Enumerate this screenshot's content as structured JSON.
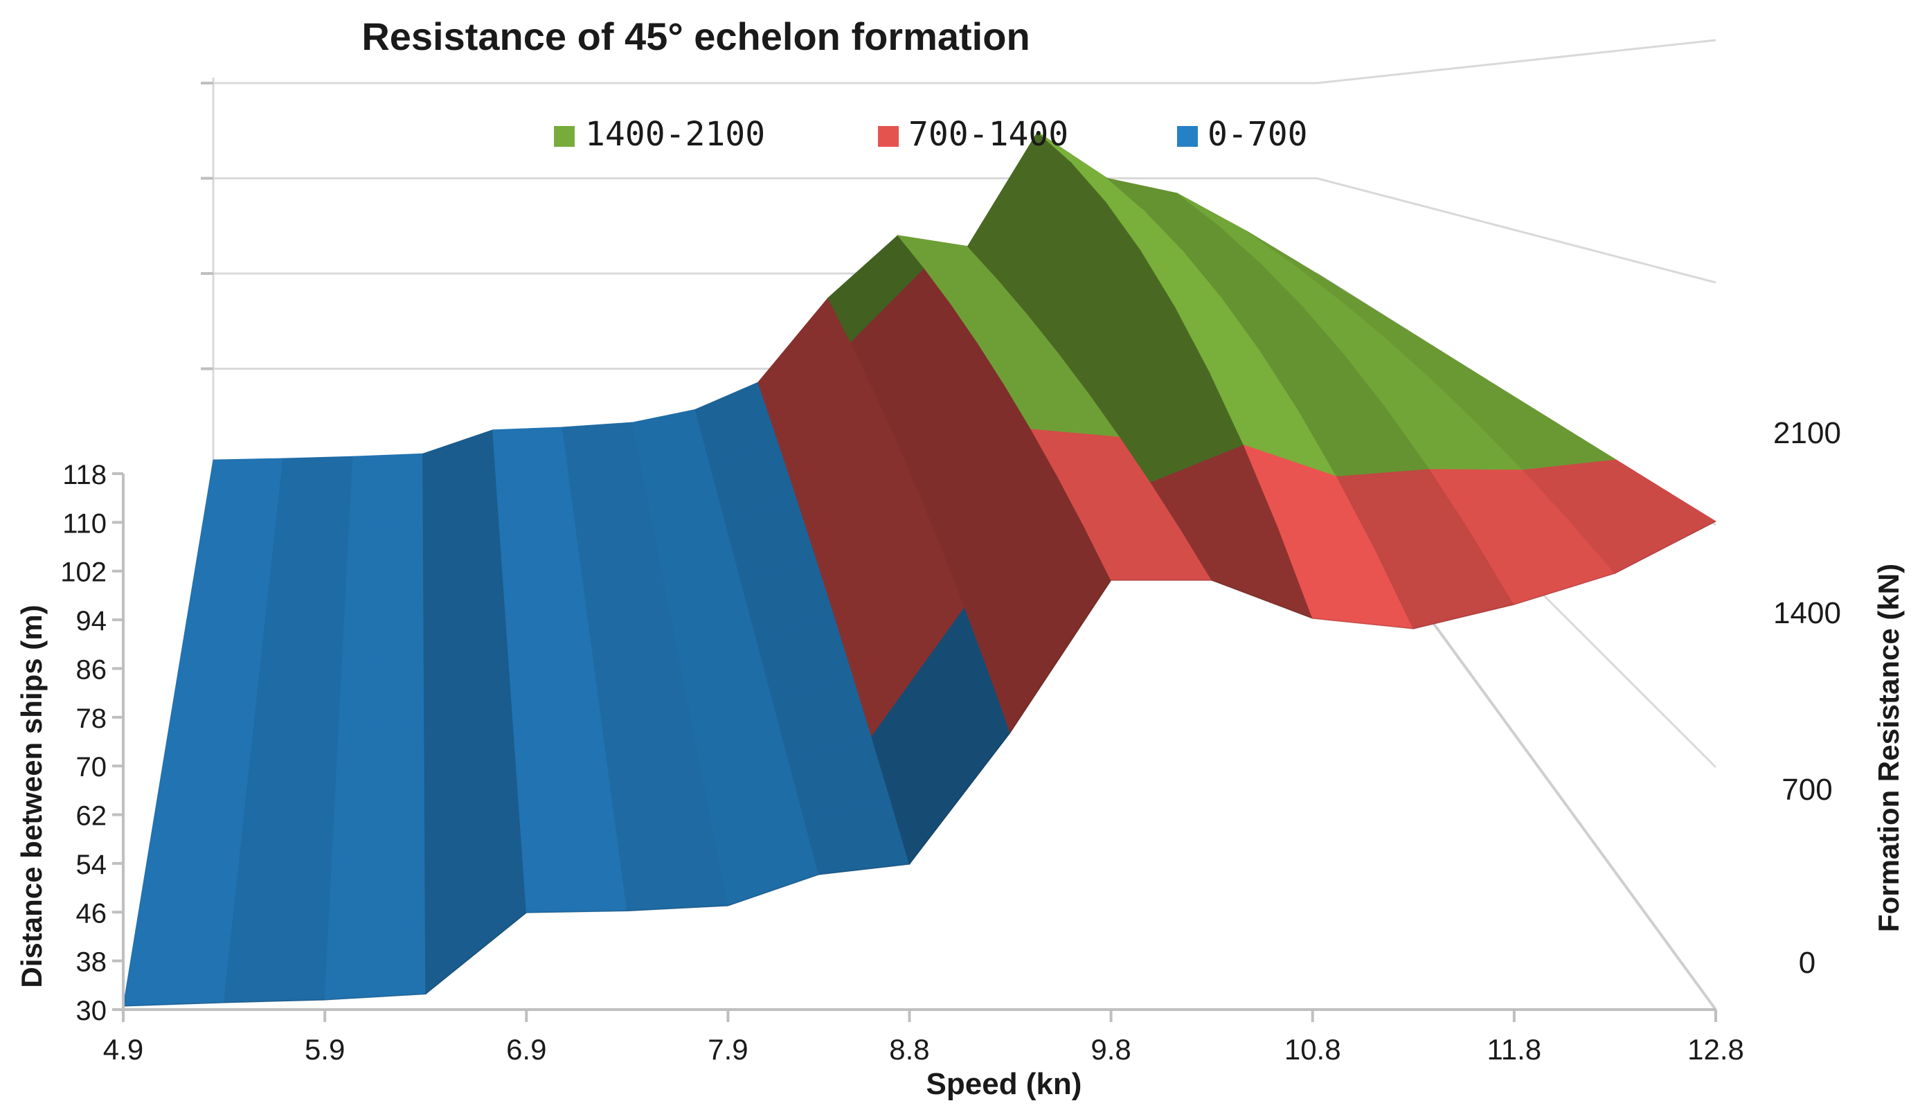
{
  "chart_data": {
    "type": "surface",
    "title": "Resistance of 45° echelon  formation",
    "xlabel": "Speed (kn)",
    "ylabel": "Distance between ships (m)",
    "zlabel": "Formation Resistance (kN)",
    "x_ticks": [
      "4.9",
      "5.9",
      "6.9",
      "7.9",
      "8.8",
      "9.8",
      "10.8",
      "11.8",
      "12.8"
    ],
    "y_ticks": [
      "30",
      "38",
      "46",
      "54",
      "62",
      "70",
      "78",
      "86",
      "94",
      "102",
      "110",
      "118"
    ],
    "z_ticks": [
      "0",
      "700",
      "1400",
      "2100"
    ],
    "zlim": [
      0,
      2800
    ],
    "legend_position": "top",
    "legend": [
      {
        "label": "1400-2100",
        "range": [
          1400,
          2100
        ],
        "color": "#77ac3a"
      },
      {
        "label": "700-1400",
        "range": [
          700,
          1400
        ],
        "color": "#e5534f"
      },
      {
        "label": "0-700",
        "range": [
          0,
          700
        ],
        "color": "#2581c6"
      }
    ],
    "speed": [
      4.9,
      5.4,
      5.9,
      6.4,
      6.9,
      7.4,
      7.9,
      8.35,
      8.8,
      9.3,
      9.8,
      10.3,
      10.8,
      11.3,
      11.8,
      12.3,
      12.8
    ],
    "resistance_at_distance_30": [
      10,
      20,
      28,
      45,
      280,
      285,
      300,
      390,
      420,
      800,
      1240,
      1240,
      1130,
      1100,
      1170,
      1260,
      1410
    ],
    "resistance_at_distance_118": [
      30,
      40,
      55,
      75,
      250,
      270,
      305,
      400,
      600,
      1220,
      1680,
      1600,
      2440,
      2100,
      1990,
      1710,
      1400
    ]
  }
}
